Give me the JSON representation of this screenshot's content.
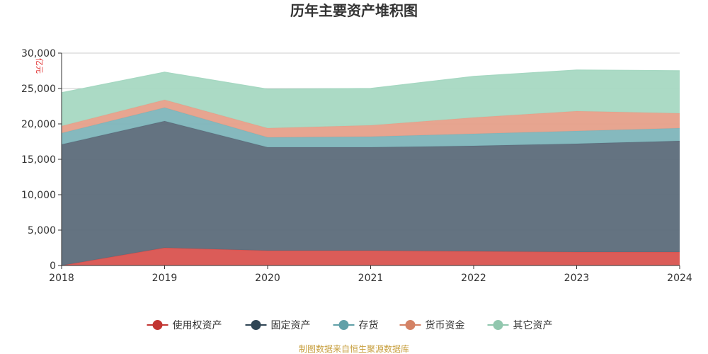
{
  "chart_data": {
    "type": "area",
    "stacked": true,
    "title": "历年主要资产堆积图",
    "ylabel": "亿元",
    "xlabel": "",
    "x": [
      "2018",
      "2019",
      "2020",
      "2021",
      "2022",
      "2023",
      "2024"
    ],
    "ylim": [
      0,
      30000
    ],
    "yticks": [
      "0",
      "5,000",
      "10,000",
      "15,000",
      "20,000",
      "25,000",
      "30,000"
    ],
    "ytick_values": [
      0,
      5000,
      10000,
      15000,
      20000,
      25000,
      30000
    ],
    "grid": true,
    "legend_position": "bottom",
    "series": [
      {
        "name": "使用权资产",
        "color": "#d9534f",
        "legend_color": "#c23531",
        "values": [
          0,
          2500,
          2100,
          2100,
          2000,
          1900,
          1900
        ]
      },
      {
        "name": "固定资产",
        "color": "#5c6b7a",
        "legend_color": "#2f4554",
        "values": [
          17100,
          17900,
          14600,
          14600,
          14900,
          15300,
          15700
        ]
      },
      {
        "name": "存货",
        "color": "#7eb5bb",
        "legend_color": "#61a0a8",
        "values": [
          1600,
          1900,
          1400,
          1500,
          1700,
          1800,
          1800
        ]
      },
      {
        "name": "货币资金",
        "color": "#e6a08a",
        "legend_color": "#d48265",
        "values": [
          1000,
          1100,
          1300,
          1600,
          2300,
          2800,
          2100
        ]
      },
      {
        "name": "其它资产",
        "color": "#a6d8c2",
        "legend_color": "#91c7ae",
        "values": [
          4700,
          3900,
          5500,
          5200,
          5800,
          5800,
          6000
        ]
      }
    ],
    "source_note": "制图数据来自恒生聚源数据库"
  }
}
